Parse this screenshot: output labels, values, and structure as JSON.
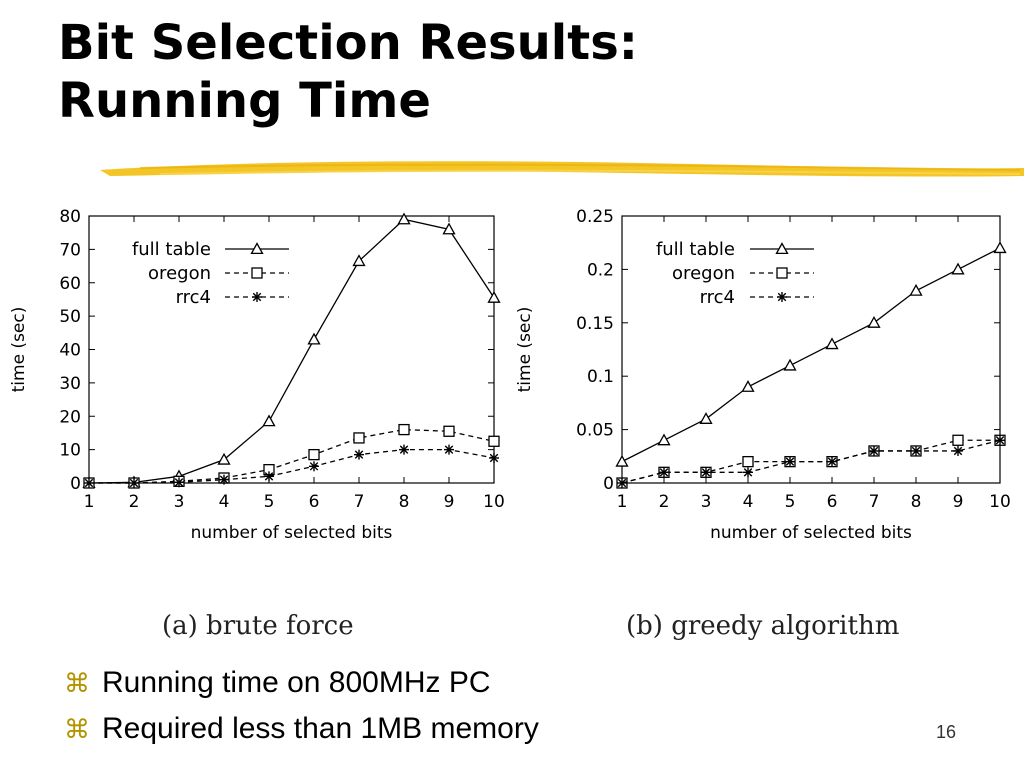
{
  "slide": {
    "title_line1": "Bit Selection Results:",
    "title_line2": "Running Time",
    "accent_color": "#f2c21b",
    "bullets": [
      {
        "icon": "command-key-icon",
        "text": "Running time on 800MHz PC"
      },
      {
        "icon": "command-key-icon",
        "text": "Required less than 1MB memory"
      }
    ],
    "page_number": "16"
  },
  "chart_data": [
    {
      "type": "line",
      "caption": "(a) brute force",
      "xlabel": "number of selected bits",
      "ylabel": "time (sec)",
      "xlim": [
        1,
        10
      ],
      "ylim": [
        0,
        80
      ],
      "x_ticks": [
        "1",
        "2",
        "3",
        "4",
        "5",
        "6",
        "7",
        "8",
        "9",
        "10"
      ],
      "y_ticks": [
        "0",
        "10",
        "20",
        "30",
        "40",
        "50",
        "60",
        "70",
        "80"
      ],
      "x": [
        1,
        2,
        3,
        4,
        5,
        6,
        7,
        8,
        9,
        10
      ],
      "grid": false,
      "legend_position": "top-left",
      "series": [
        {
          "name": "full table",
          "marker": "triangle",
          "dash": "solid",
          "values": [
            0,
            0.2,
            2,
            7,
            18.5,
            43,
            66.5,
            79,
            76,
            55.5
          ]
        },
        {
          "name": "oregon",
          "marker": "square",
          "dash": "dashed",
          "values": [
            0,
            0,
            0.5,
            1.5,
            4,
            8.5,
            13.5,
            16,
            15.5,
            12.5
          ]
        },
        {
          "name": "rrc4",
          "marker": "star",
          "dash": "dashed",
          "values": [
            0,
            0,
            0.2,
            1,
            2,
            5,
            8.5,
            10,
            10,
            7.5
          ]
        }
      ]
    },
    {
      "type": "line",
      "caption": "(b) greedy algorithm",
      "xlabel": "number of selected bits",
      "ylabel": "time (sec)",
      "xlim": [
        1,
        10
      ],
      "ylim": [
        0,
        0.25
      ],
      "x_ticks": [
        "1",
        "2",
        "3",
        "4",
        "5",
        "6",
        "7",
        "8",
        "9",
        "10"
      ],
      "y_ticks": [
        "0",
        "0.05",
        "0.1",
        "0.15",
        "0.2",
        "0.25"
      ],
      "x": [
        1,
        2,
        3,
        4,
        5,
        6,
        7,
        8,
        9,
        10
      ],
      "grid": false,
      "legend_position": "top-left",
      "series": [
        {
          "name": "full table",
          "marker": "triangle",
          "dash": "solid",
          "values": [
            0.02,
            0.04,
            0.06,
            0.09,
            0.11,
            0.13,
            0.15,
            0.18,
            0.2,
            0.22
          ]
        },
        {
          "name": "oregon",
          "marker": "square",
          "dash": "dashed",
          "values": [
            0,
            0.01,
            0.01,
            0.02,
            0.02,
            0.02,
            0.03,
            0.03,
            0.04,
            0.04
          ]
        },
        {
          "name": "rrc4",
          "marker": "star",
          "dash": "dashed",
          "values": [
            0,
            0.01,
            0.01,
            0.01,
            0.02,
            0.02,
            0.03,
            0.03,
            0.03,
            0.04
          ]
        }
      ]
    }
  ]
}
